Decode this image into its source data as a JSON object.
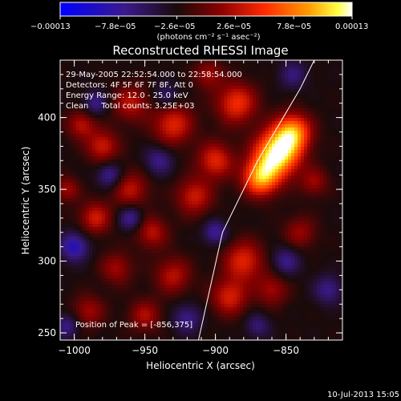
{
  "chart_data": {
    "type": "heatmap",
    "title": "Reconstructed RHESSI Image",
    "xlabel": "Heliocentric X (arcsec)",
    "ylabel": "Heliocentric Y (arcsec)",
    "xlim": [
      -1010,
      -810
    ],
    "ylim": [
      245,
      440
    ],
    "x_ticks": [
      {
        "value": -1000,
        "label": "−1000"
      },
      {
        "value": -950,
        "label": "−950"
      },
      {
        "value": -900,
        "label": "−900"
      },
      {
        "value": -850,
        "label": "−850"
      }
    ],
    "y_ticks": [
      {
        "value": 400,
        "label": "400"
      },
      {
        "value": 350,
        "label": "350"
      },
      {
        "value": 300,
        "label": "300"
      },
      {
        "value": 250,
        "label": "250"
      }
    ],
    "colorbar": {
      "range": [
        -0.00013,
        0.00013
      ],
      "tick_labels": [
        "−0.00013",
        "−7.8e−05",
        "−2.6e−05",
        "2.6e−05",
        "7.8e−05",
        "0.00013"
      ],
      "units": "(photons cm⁻² s⁻¹ asec⁻²)",
      "colors": [
        "#0000ff",
        "#3a1a8c",
        "#1a1a1a",
        "#8b0000",
        "#ff2a00",
        "#ff8c00",
        "#ffff00",
        "#ffffff"
      ]
    },
    "annotations": [
      "29-May-2005 22:52:54.000 to 22:58:54.000",
      "Detectors: 4F 5F 6F 7F 8F, Att 0",
      "Energy Range: 12.0 - 25.0 keV",
      "Clean     Total counts: 3.25E+03"
    ],
    "peak_label": "Position of Peak = [-856,375]",
    "peak": {
      "x": -856,
      "y": 375
    },
    "limb_line": [
      [
        -912,
        245
      ],
      [
        -895,
        320
      ],
      [
        -870,
        370
      ],
      [
        -840,
        420
      ],
      [
        -830,
        440
      ]
    ],
    "blobs": [
      {
        "x": -856,
        "y": 375,
        "s": 11,
        "a": 1.0
      },
      {
        "x": -868,
        "y": 358,
        "s": 9,
        "a": 0.75
      },
      {
        "x": -845,
        "y": 390,
        "s": 9,
        "a": 0.7
      },
      {
        "x": -885,
        "y": 410,
        "s": 10,
        "a": 0.5
      },
      {
        "x": -930,
        "y": 395,
        "s": 10,
        "a": 0.45
      },
      {
        "x": -960,
        "y": 410,
        "s": 9,
        "a": 0.35
      },
      {
        "x": -980,
        "y": 380,
        "s": 8,
        "a": 0.4
      },
      {
        "x": -995,
        "y": 395,
        "s": 7,
        "a": 0.35
      },
      {
        "x": -900,
        "y": 370,
        "s": 9,
        "a": 0.45
      },
      {
        "x": -915,
        "y": 345,
        "s": 9,
        "a": 0.4
      },
      {
        "x": -960,
        "y": 350,
        "s": 9,
        "a": 0.35
      },
      {
        "x": -985,
        "y": 330,
        "s": 8,
        "a": 0.4
      },
      {
        "x": -945,
        "y": 320,
        "s": 8,
        "a": 0.35
      },
      {
        "x": -880,
        "y": 300,
        "s": 10,
        "a": 0.45
      },
      {
        "x": -890,
        "y": 275,
        "s": 9,
        "a": 0.42
      },
      {
        "x": -930,
        "y": 290,
        "s": 9,
        "a": 0.35
      },
      {
        "x": -970,
        "y": 295,
        "s": 8,
        "a": 0.3
      },
      {
        "x": -990,
        "y": 265,
        "s": 8,
        "a": 0.3
      },
      {
        "x": -950,
        "y": 262,
        "s": 8,
        "a": 0.32
      },
      {
        "x": -860,
        "y": 280,
        "s": 8,
        "a": 0.3
      },
      {
        "x": -840,
        "y": 320,
        "s": 8,
        "a": 0.28
      },
      {
        "x": -830,
        "y": 355,
        "s": 7,
        "a": 0.28
      },
      {
        "x": -1005,
        "y": 350,
        "s": 6,
        "a": 0.3
      },
      {
        "x": -905,
        "y": 430,
        "s": 7,
        "a": 0.3
      },
      {
        "x": -845,
        "y": 430,
        "s": 7,
        "a": -0.25
      },
      {
        "x": -1000,
        "y": 310,
        "s": 7,
        "a": -0.45
      },
      {
        "x": -975,
        "y": 360,
        "s": 6,
        "a": -0.35
      },
      {
        "x": -960,
        "y": 330,
        "s": 6,
        "a": -0.35
      },
      {
        "x": -985,
        "y": 410,
        "s": 6,
        "a": -0.3
      },
      {
        "x": -940,
        "y": 370,
        "s": 7,
        "a": -0.3
      },
      {
        "x": -920,
        "y": 260,
        "s": 7,
        "a": -0.3
      },
      {
        "x": -900,
        "y": 320,
        "s": 6,
        "a": -0.35
      },
      {
        "x": -850,
        "y": 300,
        "s": 7,
        "a": -0.3
      },
      {
        "x": -820,
        "y": 280,
        "s": 7,
        "a": -0.3
      },
      {
        "x": -870,
        "y": 255,
        "s": 6,
        "a": -0.25
      },
      {
        "x": -935,
        "y": 415,
        "s": 6,
        "a": -0.25
      },
      {
        "x": -1005,
        "y": 255,
        "s": 6,
        "a": -0.3
      }
    ]
  },
  "footer_timestamp": "10-Jul-2013 15:05"
}
